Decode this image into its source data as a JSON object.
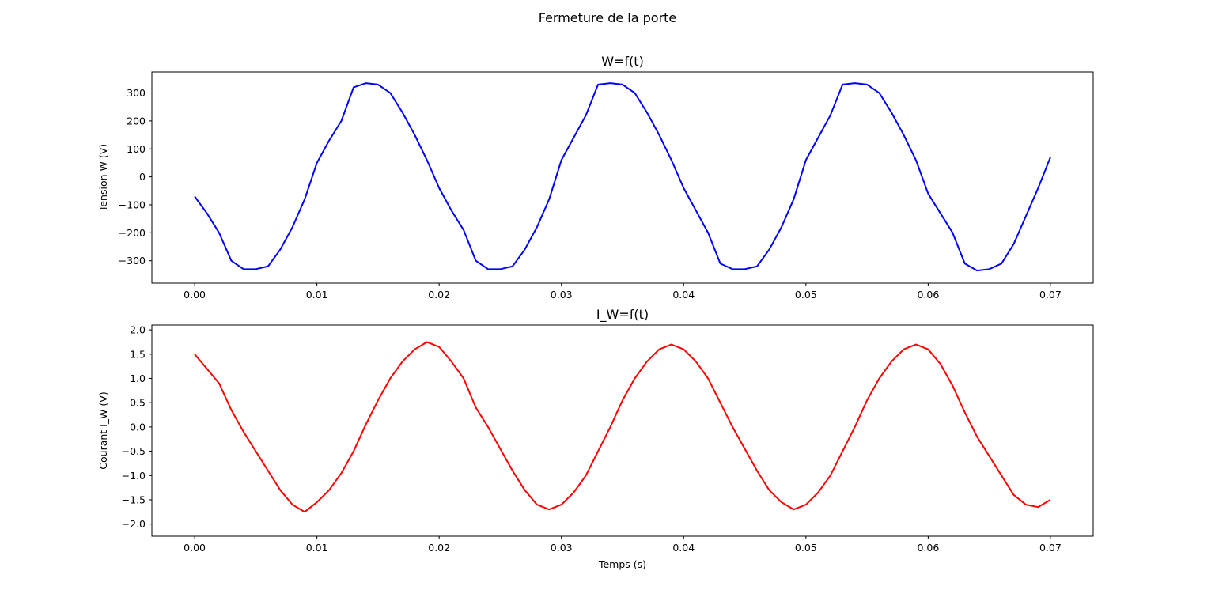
{
  "figure": {
    "suptitle": "Fermeture de la porte"
  },
  "chart_data": [
    {
      "type": "line",
      "title": "W=f(t)",
      "xlabel": "",
      "ylabel": "Tension W (V)",
      "xlim": [
        -0.0035,
        0.0735
      ],
      "ylim": [
        -380,
        375
      ],
      "xticks": [
        0.0,
        0.01,
        0.02,
        0.03,
        0.04,
        0.05,
        0.06,
        0.07
      ],
      "xtick_labels": [
        "0.00",
        "0.01",
        "0.02",
        "0.03",
        "0.04",
        "0.05",
        "0.06",
        "0.07"
      ],
      "yticks": [
        -300,
        -200,
        -100,
        0,
        100,
        200,
        300
      ],
      "ytick_labels": [
        "−300",
        "−200",
        "−100",
        "0",
        "100",
        "200",
        "300"
      ],
      "grid": false,
      "series": [
        {
          "color": "#0000ff",
          "x": [
            0.0,
            0.001,
            0.002,
            0.003,
            0.004,
            0.005,
            0.006,
            0.007,
            0.008,
            0.009,
            0.01,
            0.011,
            0.012,
            0.013,
            0.014,
            0.015,
            0.016,
            0.017,
            0.018,
            0.019,
            0.02,
            0.021,
            0.022,
            0.023,
            0.024,
            0.025,
            0.026,
            0.027,
            0.028,
            0.029,
            0.03,
            0.031,
            0.032,
            0.033,
            0.034,
            0.035,
            0.036,
            0.037,
            0.038,
            0.039,
            0.04,
            0.041,
            0.042,
            0.043,
            0.044,
            0.045,
            0.046,
            0.047,
            0.048,
            0.049,
            0.05,
            0.051,
            0.052,
            0.053,
            0.054,
            0.055,
            0.056,
            0.057,
            0.058,
            0.059,
            0.06,
            0.061,
            0.062,
            0.063,
            0.064,
            0.065,
            0.066,
            0.067,
            0.068,
            0.069,
            0.07
          ],
          "y": [
            -70,
            -130,
            -200,
            -300,
            -330,
            -330,
            -320,
            -260,
            -180,
            -80,
            50,
            130,
            200,
            320,
            335,
            330,
            300,
            230,
            150,
            60,
            -40,
            -120,
            -190,
            -300,
            -330,
            -330,
            -320,
            -260,
            -180,
            -80,
            60,
            140,
            220,
            330,
            335,
            330,
            300,
            230,
            150,
            60,
            -40,
            -120,
            -200,
            -310,
            -330,
            -330,
            -320,
            -260,
            -180,
            -80,
            60,
            140,
            220,
            330,
            335,
            330,
            300,
            230,
            150,
            60,
            -60,
            -130,
            -200,
            -310,
            -335,
            -330,
            -310,
            -240,
            -140,
            -40,
            70
          ]
        }
      ]
    },
    {
      "type": "line",
      "title": "I_W=f(t)",
      "xlabel": "Temps (s)",
      "ylabel": "Courant I_W (V)",
      "xlim": [
        -0.0035,
        0.0735
      ],
      "ylim": [
        -2.25,
        2.1
      ],
      "xticks": [
        0.0,
        0.01,
        0.02,
        0.03,
        0.04,
        0.05,
        0.06,
        0.07
      ],
      "xtick_labels": [
        "0.00",
        "0.01",
        "0.02",
        "0.03",
        "0.04",
        "0.05",
        "0.06",
        "0.07"
      ],
      "yticks": [
        -2.0,
        -1.5,
        -1.0,
        -0.5,
        0.0,
        0.5,
        1.0,
        1.5,
        2.0
      ],
      "ytick_labels": [
        "−2.0",
        "−1.5",
        "−1.0",
        "−0.5",
        "0.0",
        "0.5",
        "1.0",
        "1.5",
        "2.0"
      ],
      "grid": false,
      "series": [
        {
          "color": "#ff0000",
          "x": [
            0.0,
            0.001,
            0.002,
            0.003,
            0.004,
            0.005,
            0.006,
            0.007,
            0.008,
            0.009,
            0.01,
            0.011,
            0.012,
            0.013,
            0.014,
            0.015,
            0.016,
            0.017,
            0.018,
            0.019,
            0.02,
            0.021,
            0.022,
            0.023,
            0.024,
            0.025,
            0.026,
            0.027,
            0.028,
            0.029,
            0.03,
            0.031,
            0.032,
            0.033,
            0.034,
            0.035,
            0.036,
            0.037,
            0.038,
            0.039,
            0.04,
            0.041,
            0.042,
            0.043,
            0.044,
            0.045,
            0.046,
            0.047,
            0.048,
            0.049,
            0.05,
            0.051,
            0.052,
            0.053,
            0.054,
            0.055,
            0.056,
            0.057,
            0.058,
            0.059,
            0.06,
            0.061,
            0.062,
            0.063,
            0.064,
            0.065,
            0.066,
            0.067,
            0.068,
            0.069,
            0.07
          ],
          "y": [
            1.5,
            1.2,
            0.9,
            0.35,
            -0.1,
            -0.5,
            -0.9,
            -1.3,
            -1.6,
            -1.75,
            -1.55,
            -1.3,
            -0.95,
            -0.5,
            0.05,
            0.55,
            1.0,
            1.35,
            1.6,
            1.75,
            1.65,
            1.35,
            1.0,
            0.4,
            0.0,
            -0.45,
            -0.9,
            -1.3,
            -1.6,
            -1.7,
            -1.6,
            -1.35,
            -1.0,
            -0.5,
            0.0,
            0.55,
            1.0,
            1.35,
            1.6,
            1.7,
            1.6,
            1.35,
            1.0,
            0.5,
            0.0,
            -0.45,
            -0.9,
            -1.3,
            -1.55,
            -1.7,
            -1.6,
            -1.35,
            -1.0,
            -0.5,
            0.0,
            0.55,
            1.0,
            1.35,
            1.6,
            1.7,
            1.6,
            1.3,
            0.85,
            0.3,
            -0.2,
            -0.6,
            -1.0,
            -1.4,
            -1.6,
            -1.65,
            -1.5
          ]
        }
      ]
    }
  ]
}
